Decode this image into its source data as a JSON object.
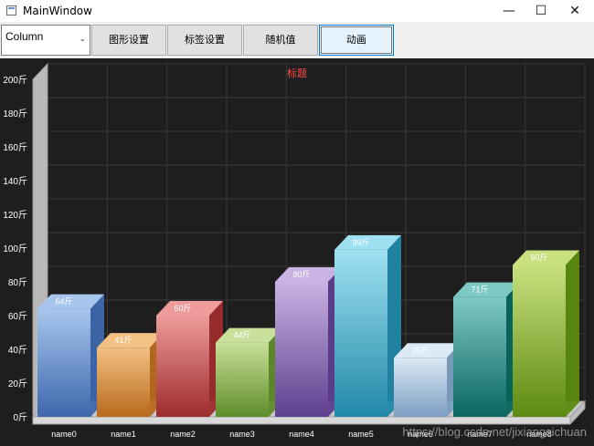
{
  "window": {
    "title": "MainWindow",
    "minimize": "—",
    "maximize": "☐",
    "close": "✕"
  },
  "toolbar": {
    "chart_type": "Column",
    "buttons": [
      "图形设置",
      "标签设置",
      "随机值",
      "动画"
    ]
  },
  "watermark": "https://blog.csdn.net/jixiangsichuan",
  "colors": {
    "background": "#1e1e1e",
    "title": "#ff4d4d",
    "grid": "#3a3a3a"
  },
  "chart_data": {
    "type": "bar",
    "style": "3d-column",
    "title": "标题",
    "categories": [
      "name0",
      "name1",
      "name2",
      "name3",
      "name4",
      "name5",
      "name6",
      "name7",
      "name8"
    ],
    "values": [
      64,
      41,
      60,
      44,
      80,
      99,
      35,
      71,
      90
    ],
    "data_labels": [
      "64斤",
      "41斤",
      "60斤",
      "44斤",
      "80斤",
      "99斤",
      "35斤",
      "71斤",
      "90斤"
    ],
    "ylim": [
      0,
      200
    ],
    "yticks": [
      "0斤",
      "20斤",
      "40斤",
      "60斤",
      "80斤",
      "100斤",
      "120斤",
      "140斤",
      "160斤",
      "180斤",
      "200斤"
    ],
    "grid": true,
    "bar_colors": [
      [
        "#a7c6ee",
        "#3e68ad"
      ],
      [
        "#f2c183",
        "#b86a1c"
      ],
      [
        "#ee9b9b",
        "#9e2b2b"
      ],
      [
        "#c9e09a",
        "#5f8d2a"
      ],
      [
        "#c9b3e3",
        "#5e3f8e"
      ],
      [
        "#9fe1f1",
        "#2188a8"
      ],
      [
        "#dce9f6",
        "#7d9fc2"
      ],
      [
        "#7fc9c4",
        "#0a6661"
      ],
      [
        "#c8e07e",
        "#5c8a10"
      ]
    ]
  }
}
